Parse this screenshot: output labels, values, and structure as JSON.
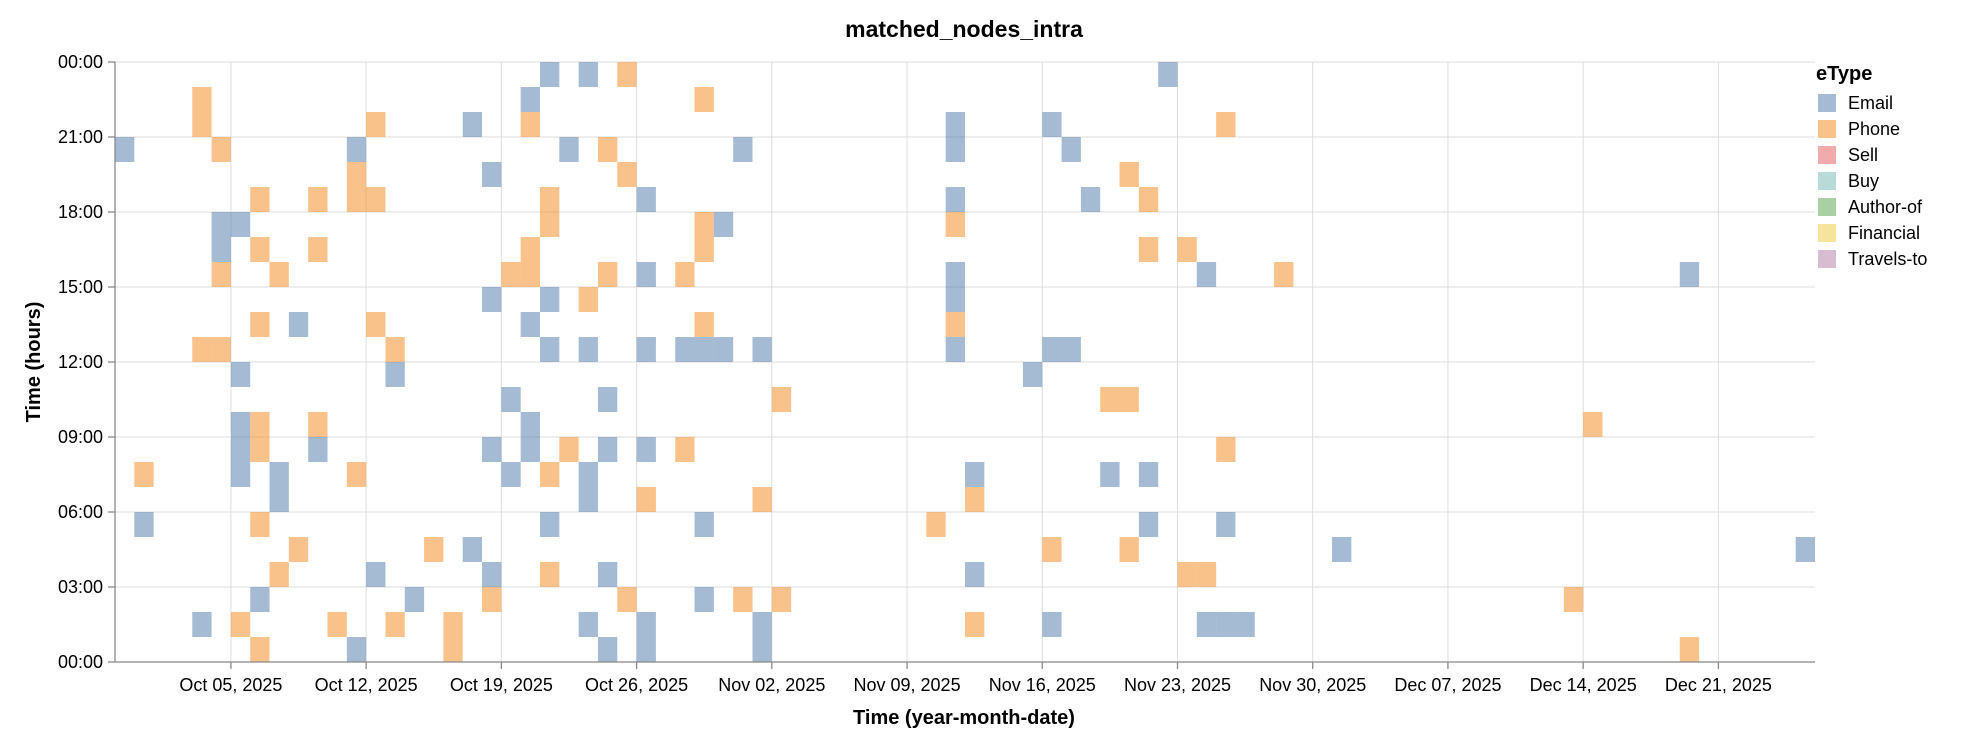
{
  "chart_data": {
    "type": "heatmap",
    "title": "matched_nodes_intra",
    "xlabel": "Time (year-month-date)",
    "ylabel": "Time (hours)",
    "x_range": [
      "2025-09-29",
      "2025-12-26"
    ],
    "y_range": [
      0,
      24
    ],
    "x_ticks": [
      "Oct 05, 2025",
      "Oct 12, 2025",
      "Oct 19, 2025",
      "Oct 26, 2025",
      "Nov 02, 2025",
      "Nov 09, 2025",
      "Nov 16, 2025",
      "Nov 23, 2025",
      "Nov 30, 2025",
      "Dec 07, 2025",
      "Dec 14, 2025",
      "Dec 21, 2025"
    ],
    "y_ticks": [
      "00:00",
      "03:00",
      "06:00",
      "09:00",
      "12:00",
      "15:00",
      "18:00",
      "21:00",
      "00:00"
    ],
    "grid": true,
    "legend": {
      "title": "eType",
      "position": "top-right",
      "items": [
        {
          "name": "Email",
          "color": "#4c78a8"
        },
        {
          "name": "Phone",
          "color": "#f58518"
        },
        {
          "name": "Sell",
          "color": "#e45756"
        },
        {
          "name": "Buy",
          "color": "#72b7b2"
        },
        {
          "name": "Author-of",
          "color": "#54a24b"
        },
        {
          "name": "Financial",
          "color": "#eeca3b"
        },
        {
          "name": "Travels-to",
          "color": "#b279a2"
        }
      ]
    },
    "cell_opacity": 0.5,
    "events": [
      {
        "date": "2025-09-29",
        "hour": 20,
        "type": "Email"
      },
      {
        "date": "2025-09-30",
        "hour": 7,
        "type": "Phone"
      },
      {
        "date": "2025-09-30",
        "hour": 5,
        "type": "Email"
      },
      {
        "date": "2025-10-03",
        "hour": 22,
        "type": "Phone"
      },
      {
        "date": "2025-10-03",
        "hour": 21,
        "type": "Phone"
      },
      {
        "date": "2025-10-03",
        "hour": 12,
        "type": "Phone"
      },
      {
        "date": "2025-10-03",
        "hour": 1,
        "type": "Email"
      },
      {
        "date": "2025-10-04",
        "hour": 20,
        "type": "Phone"
      },
      {
        "date": "2025-10-04",
        "hour": 15,
        "type": "Phone"
      },
      {
        "date": "2025-10-04",
        "hour": 12,
        "type": "Phone"
      },
      {
        "date": "2025-10-04",
        "hour": 17,
        "type": "Email"
      },
      {
        "date": "2025-10-04",
        "hour": 16,
        "type": "Email"
      },
      {
        "date": "2025-10-05",
        "hour": 17,
        "type": "Email"
      },
      {
        "date": "2025-10-05",
        "hour": 11,
        "type": "Email"
      },
      {
        "date": "2025-10-05",
        "hour": 9,
        "type": "Email"
      },
      {
        "date": "2025-10-05",
        "hour": 8,
        "type": "Email"
      },
      {
        "date": "2025-10-05",
        "hour": 7,
        "type": "Email"
      },
      {
        "date": "2025-10-05",
        "hour": 1,
        "type": "Phone"
      },
      {
        "date": "2025-10-06",
        "hour": 18,
        "type": "Phone"
      },
      {
        "date": "2025-10-06",
        "hour": 16,
        "type": "Phone"
      },
      {
        "date": "2025-10-06",
        "hour": 13,
        "type": "Phone"
      },
      {
        "date": "2025-10-06",
        "hour": 9,
        "type": "Phone"
      },
      {
        "date": "2025-10-06",
        "hour": 8,
        "type": "Phone"
      },
      {
        "date": "2025-10-06",
        "hour": 5,
        "type": "Phone"
      },
      {
        "date": "2025-10-06",
        "hour": 2,
        "type": "Email"
      },
      {
        "date": "2025-10-06",
        "hour": 0,
        "type": "Phone"
      },
      {
        "date": "2025-10-07",
        "hour": 15,
        "type": "Phone"
      },
      {
        "date": "2025-10-07",
        "hour": 7,
        "type": "Email"
      },
      {
        "date": "2025-10-07",
        "hour": 6,
        "type": "Email"
      },
      {
        "date": "2025-10-07",
        "hour": 3,
        "type": "Phone"
      },
      {
        "date": "2025-10-08",
        "hour": 13,
        "type": "Email"
      },
      {
        "date": "2025-10-08",
        "hour": 4,
        "type": "Phone"
      },
      {
        "date": "2025-10-09",
        "hour": 18,
        "type": "Phone"
      },
      {
        "date": "2025-10-09",
        "hour": 16,
        "type": "Phone"
      },
      {
        "date": "2025-10-09",
        "hour": 9,
        "type": "Phone"
      },
      {
        "date": "2025-10-09",
        "hour": 8,
        "type": "Email"
      },
      {
        "date": "2025-10-10",
        "hour": 1,
        "type": "Phone"
      },
      {
        "date": "2025-10-11",
        "hour": 20,
        "type": "Email"
      },
      {
        "date": "2025-10-11",
        "hour": 19,
        "type": "Phone"
      },
      {
        "date": "2025-10-11",
        "hour": 18,
        "type": "Phone"
      },
      {
        "date": "2025-10-11",
        "hour": 7,
        "type": "Phone"
      },
      {
        "date": "2025-10-11",
        "hour": 0,
        "type": "Email"
      },
      {
        "date": "2025-10-12",
        "hour": 21,
        "type": "Phone"
      },
      {
        "date": "2025-10-12",
        "hour": 18,
        "type": "Phone"
      },
      {
        "date": "2025-10-12",
        "hour": 13,
        "type": "Phone"
      },
      {
        "date": "2025-10-12",
        "hour": 3,
        "type": "Email"
      },
      {
        "date": "2025-10-13",
        "hour": 12,
        "type": "Phone"
      },
      {
        "date": "2025-10-13",
        "hour": 11,
        "type": "Email"
      },
      {
        "date": "2025-10-13",
        "hour": 1,
        "type": "Phone"
      },
      {
        "date": "2025-10-14",
        "hour": 2,
        "type": "Email"
      },
      {
        "date": "2025-10-15",
        "hour": 4,
        "type": "Phone"
      },
      {
        "date": "2025-10-16",
        "hour": 1,
        "type": "Phone"
      },
      {
        "date": "2025-10-16",
        "hour": 0,
        "type": "Phone"
      },
      {
        "date": "2025-10-17",
        "hour": 21,
        "type": "Email"
      },
      {
        "date": "2025-10-17",
        "hour": 4,
        "type": "Email"
      },
      {
        "date": "2025-10-18",
        "hour": 19,
        "type": "Email"
      },
      {
        "date": "2025-10-18",
        "hour": 14,
        "type": "Email"
      },
      {
        "date": "2025-10-18",
        "hour": 8,
        "type": "Email"
      },
      {
        "date": "2025-10-18",
        "hour": 3,
        "type": "Email"
      },
      {
        "date": "2025-10-18",
        "hour": 2,
        "type": "Phone"
      },
      {
        "date": "2025-10-19",
        "hour": 15,
        "type": "Phone"
      },
      {
        "date": "2025-10-19",
        "hour": 10,
        "type": "Email"
      },
      {
        "date": "2025-10-19",
        "hour": 7,
        "type": "Email"
      },
      {
        "date": "2025-10-20",
        "hour": 22,
        "type": "Email"
      },
      {
        "date": "2025-10-20",
        "hour": 21,
        "type": "Phone"
      },
      {
        "date": "2025-10-20",
        "hour": 16,
        "type": "Phone"
      },
      {
        "date": "2025-10-20",
        "hour": 15,
        "type": "Phone"
      },
      {
        "date": "2025-10-20",
        "hour": 13,
        "type": "Email"
      },
      {
        "date": "2025-10-20",
        "hour": 9,
        "type": "Email"
      },
      {
        "date": "2025-10-20",
        "hour": 8,
        "type": "Email"
      },
      {
        "date": "2025-10-21",
        "hour": 23,
        "type": "Email"
      },
      {
        "date": "2025-10-21",
        "hour": 18,
        "type": "Phone"
      },
      {
        "date": "2025-10-21",
        "hour": 17,
        "type": "Phone"
      },
      {
        "date": "2025-10-21",
        "hour": 14,
        "type": "Email"
      },
      {
        "date": "2025-10-21",
        "hour": 12,
        "type": "Email"
      },
      {
        "date": "2025-10-21",
        "hour": 7,
        "type": "Phone"
      },
      {
        "date": "2025-10-21",
        "hour": 5,
        "type": "Email"
      },
      {
        "date": "2025-10-21",
        "hour": 3,
        "type": "Phone"
      },
      {
        "date": "2025-10-22",
        "hour": 20,
        "type": "Email"
      },
      {
        "date": "2025-10-22",
        "hour": 8,
        "type": "Phone"
      },
      {
        "date": "2025-10-23",
        "hour": 23,
        "type": "Email"
      },
      {
        "date": "2025-10-23",
        "hour": 14,
        "type": "Phone"
      },
      {
        "date": "2025-10-23",
        "hour": 12,
        "type": "Email"
      },
      {
        "date": "2025-10-23",
        "hour": 7,
        "type": "Email"
      },
      {
        "date": "2025-10-23",
        "hour": 6,
        "type": "Email"
      },
      {
        "date": "2025-10-23",
        "hour": 1,
        "type": "Email"
      },
      {
        "date": "2025-10-24",
        "hour": 20,
        "type": "Phone"
      },
      {
        "date": "2025-10-24",
        "hour": 15,
        "type": "Phone"
      },
      {
        "date": "2025-10-24",
        "hour": 10,
        "type": "Email"
      },
      {
        "date": "2025-10-24",
        "hour": 8,
        "type": "Email"
      },
      {
        "date": "2025-10-24",
        "hour": 3,
        "type": "Email"
      },
      {
        "date": "2025-10-24",
        "hour": 0,
        "type": "Email"
      },
      {
        "date": "2025-10-25",
        "hour": 23,
        "type": "Phone"
      },
      {
        "date": "2025-10-25",
        "hour": 19,
        "type": "Phone"
      },
      {
        "date": "2025-10-25",
        "hour": 2,
        "type": "Phone"
      },
      {
        "date": "2025-10-26",
        "hour": 18,
        "type": "Email"
      },
      {
        "date": "2025-10-26",
        "hour": 15,
        "type": "Email"
      },
      {
        "date": "2025-10-26",
        "hour": 12,
        "type": "Email"
      },
      {
        "date": "2025-10-26",
        "hour": 8,
        "type": "Email"
      },
      {
        "date": "2025-10-26",
        "hour": 6,
        "type": "Phone"
      },
      {
        "date": "2025-10-26",
        "hour": 1,
        "type": "Email"
      },
      {
        "date": "2025-10-26",
        "hour": 0,
        "type": "Email"
      },
      {
        "date": "2025-10-28",
        "hour": 15,
        "type": "Phone"
      },
      {
        "date": "2025-10-28",
        "hour": 12,
        "type": "Email"
      },
      {
        "date": "2025-10-28",
        "hour": 8,
        "type": "Phone"
      },
      {
        "date": "2025-10-29",
        "hour": 22,
        "type": "Phone"
      },
      {
        "date": "2025-10-29",
        "hour": 17,
        "type": "Phone"
      },
      {
        "date": "2025-10-29",
        "hour": 16,
        "type": "Phone"
      },
      {
        "date": "2025-10-29",
        "hour": 13,
        "type": "Phone"
      },
      {
        "date": "2025-10-29",
        "hour": 12,
        "type": "Email"
      },
      {
        "date": "2025-10-29",
        "hour": 5,
        "type": "Email"
      },
      {
        "date": "2025-10-29",
        "hour": 2,
        "type": "Email"
      },
      {
        "date": "2025-10-30",
        "hour": 17,
        "type": "Email"
      },
      {
        "date": "2025-10-30",
        "hour": 12,
        "type": "Email"
      },
      {
        "date": "2025-10-31",
        "hour": 20,
        "type": "Email"
      },
      {
        "date": "2025-10-31",
        "hour": 2,
        "type": "Phone"
      },
      {
        "date": "2025-11-01",
        "hour": 12,
        "type": "Email"
      },
      {
        "date": "2025-11-01",
        "hour": 6,
        "type": "Phone"
      },
      {
        "date": "2025-11-01",
        "hour": 1,
        "type": "Email"
      },
      {
        "date": "2025-11-01",
        "hour": 0,
        "type": "Email"
      },
      {
        "date": "2025-11-02",
        "hour": 10,
        "type": "Phone"
      },
      {
        "date": "2025-11-02",
        "hour": 2,
        "type": "Phone"
      },
      {
        "date": "2025-11-10",
        "hour": 5,
        "type": "Phone"
      },
      {
        "date": "2025-11-11",
        "hour": 21,
        "type": "Email"
      },
      {
        "date": "2025-11-11",
        "hour": 20,
        "type": "Email"
      },
      {
        "date": "2025-11-11",
        "hour": 18,
        "type": "Email"
      },
      {
        "date": "2025-11-11",
        "hour": 17,
        "type": "Phone"
      },
      {
        "date": "2025-11-11",
        "hour": 15,
        "type": "Email"
      },
      {
        "date": "2025-11-11",
        "hour": 14,
        "type": "Email"
      },
      {
        "date": "2025-11-11",
        "hour": 13,
        "type": "Phone"
      },
      {
        "date": "2025-11-11",
        "hour": 12,
        "type": "Email"
      },
      {
        "date": "2025-11-12",
        "hour": 7,
        "type": "Email"
      },
      {
        "date": "2025-11-12",
        "hour": 6,
        "type": "Phone"
      },
      {
        "date": "2025-11-12",
        "hour": 3,
        "type": "Email"
      },
      {
        "date": "2025-11-12",
        "hour": 1,
        "type": "Phone"
      },
      {
        "date": "2025-11-15",
        "hour": 11,
        "type": "Email"
      },
      {
        "date": "2025-11-16",
        "hour": 21,
        "type": "Email"
      },
      {
        "date": "2025-11-16",
        "hour": 12,
        "type": "Email"
      },
      {
        "date": "2025-11-16",
        "hour": 4,
        "type": "Phone"
      },
      {
        "date": "2025-11-16",
        "hour": 1,
        "type": "Email"
      },
      {
        "date": "2025-11-17",
        "hour": 20,
        "type": "Email"
      },
      {
        "date": "2025-11-17",
        "hour": 12,
        "type": "Email"
      },
      {
        "date": "2025-11-18",
        "hour": 18,
        "type": "Email"
      },
      {
        "date": "2025-11-19",
        "hour": 10,
        "type": "Phone"
      },
      {
        "date": "2025-11-19",
        "hour": 7,
        "type": "Email"
      },
      {
        "date": "2025-11-20",
        "hour": 19,
        "type": "Phone"
      },
      {
        "date": "2025-11-20",
        "hour": 10,
        "type": "Phone"
      },
      {
        "date": "2025-11-20",
        "hour": 4,
        "type": "Phone"
      },
      {
        "date": "2025-11-21",
        "hour": 18,
        "type": "Phone"
      },
      {
        "date": "2025-11-21",
        "hour": 16,
        "type": "Phone"
      },
      {
        "date": "2025-11-21",
        "hour": 7,
        "type": "Email"
      },
      {
        "date": "2025-11-21",
        "hour": 5,
        "type": "Email"
      },
      {
        "date": "2025-11-22",
        "hour": 23,
        "type": "Email"
      },
      {
        "date": "2025-11-23",
        "hour": 16,
        "type": "Phone"
      },
      {
        "date": "2025-11-23",
        "hour": 3,
        "type": "Phone"
      },
      {
        "date": "2025-11-24",
        "hour": 15,
        "type": "Email"
      },
      {
        "date": "2025-11-24",
        "hour": 3,
        "type": "Phone"
      },
      {
        "date": "2025-11-24",
        "hour": 1,
        "type": "Email"
      },
      {
        "date": "2025-11-25",
        "hour": 21,
        "type": "Phone"
      },
      {
        "date": "2025-11-25",
        "hour": 8,
        "type": "Phone"
      },
      {
        "date": "2025-11-25",
        "hour": 5,
        "type": "Email"
      },
      {
        "date": "2025-11-25",
        "hour": 1,
        "type": "Email"
      },
      {
        "date": "2025-11-26",
        "hour": 1,
        "type": "Email"
      },
      {
        "date": "2025-11-28",
        "hour": 15,
        "type": "Phone"
      },
      {
        "date": "2025-12-01",
        "hour": 4,
        "type": "Email"
      },
      {
        "date": "2025-12-13",
        "hour": 2,
        "type": "Phone"
      },
      {
        "date": "2025-12-14",
        "hour": 9,
        "type": "Phone"
      },
      {
        "date": "2025-12-19",
        "hour": 15,
        "type": "Email"
      },
      {
        "date": "2025-12-19",
        "hour": 0,
        "type": "Phone"
      },
      {
        "date": "2025-12-25",
        "hour": 4,
        "type": "Email"
      }
    ]
  }
}
